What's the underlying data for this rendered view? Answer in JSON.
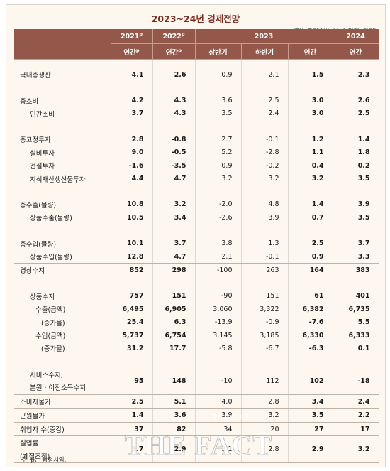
{
  "title": "2023~24년 경제전망",
  "unit": "(전년동기대비, %, 억달러, 만명)",
  "header": {
    "years": [
      "2021p",
      "2022p",
      "2023",
      "2024"
    ],
    "cols": [
      "연간p",
      "연간p",
      "상반기",
      "하반기",
      "연간",
      "연간"
    ]
  },
  "rows": [
    {
      "label": "국내총생산",
      "v": [
        "4.1",
        "2.6",
        "0.9",
        "2.1",
        "1.5",
        "2.3"
      ]
    },
    {
      "label": "총소비",
      "v": [
        "4.2",
        "4.3",
        "3.6",
        "2.5",
        "3.0",
        "2.6"
      ]
    },
    {
      "label": "민간소비",
      "v": [
        "3.7",
        "4.3",
        "3.5",
        "2.4",
        "3.0",
        "2.5"
      ]
    },
    {
      "label": "총고정투자",
      "v": [
        "2.8",
        "-0.8",
        "2.7",
        "-0.1",
        "1.2",
        "1.4"
      ]
    },
    {
      "label": "설비투자",
      "v": [
        "9.0",
        "-0.5",
        "5.2",
        "-2.8",
        "1.1",
        "1.8"
      ]
    },
    {
      "label": "건설투자",
      "v": [
        "-1.6",
        "-3.5",
        "0.9",
        "-0.2",
        "0.4",
        "0.2"
      ]
    },
    {
      "label": "지식재산생산물투자",
      "v": [
        "4.4",
        "4.7",
        "3.2",
        "3.2",
        "3.2",
        "3.5"
      ]
    },
    {
      "label": "총수출(물량)",
      "v": [
        "10.8",
        "3.2",
        "-2.0",
        "4.8",
        "1.4",
        "3.9"
      ]
    },
    {
      "label": "상품수출(물량)",
      "v": [
        "10.5",
        "3.4",
        "-2.6",
        "3.9",
        "0.7",
        "3.5"
      ]
    },
    {
      "label": "총수입(물량)",
      "v": [
        "10.1",
        "3.7",
        "3.8",
        "1.3",
        "2.5",
        "3.7"
      ]
    },
    {
      "label": "상품수입(물량)",
      "v": [
        "12.8",
        "4.7",
        "2.1",
        "-0.1",
        "0.9",
        "3.3"
      ]
    },
    {
      "label": "경상수지",
      "v": [
        "852",
        "298",
        "-100",
        "263",
        "164",
        "383"
      ]
    },
    {
      "label": "상품수지",
      "v": [
        "757",
        "151",
        "-90",
        "151",
        "61",
        "401"
      ]
    },
    {
      "label": "수출(금액)",
      "v": [
        "6,495",
        "6,905",
        "3,060",
        "3,322",
        "6,382",
        "6,735"
      ]
    },
    {
      "label": "(증가율)",
      "v": [
        "25.4",
        "6.3",
        "-13.9",
        "-0.9",
        "-7.6",
        "5.5"
      ]
    },
    {
      "label": "수입(금액)",
      "v": [
        "5,737",
        "6,754",
        "3,145",
        "3,185",
        "6,330",
        "6,333"
      ]
    },
    {
      "label": "(증가율)",
      "v": [
        "31.2",
        "17.7",
        "-5.8",
        "-6.7",
        "-6.3",
        "0.1"
      ]
    },
    {
      "label1": "서비스수지,",
      "label2": "본원 · 이전소득수지",
      "v": [
        "95",
        "148",
        "-10",
        "112",
        "102",
        "-18"
      ]
    },
    {
      "label": "소비자물가",
      "v": [
        "2.5",
        "5.1",
        "4.0",
        "2.8",
        "3.4",
        "2.4"
      ]
    },
    {
      "label": "근원물가",
      "v": [
        "1.4",
        "3.6",
        "3.9",
        "3.2",
        "3.5",
        "2.2"
      ]
    },
    {
      "label": "취업자 수(증감)",
      "v": [
        "37",
        "82",
        "34",
        "20",
        "27",
        "17"
      ]
    },
    {
      "label1": "실업률",
      "label2": "(계절조정)",
      "v": [
        "3.7",
        "2.9",
        "3.1",
        "2.8",
        "2.9",
        "3.2"
      ]
    }
  ],
  "note": "주: p는 잠정치임.",
  "watermark": {
    "text": "THE FACT",
    "site": "TF.CO.KR"
  }
}
